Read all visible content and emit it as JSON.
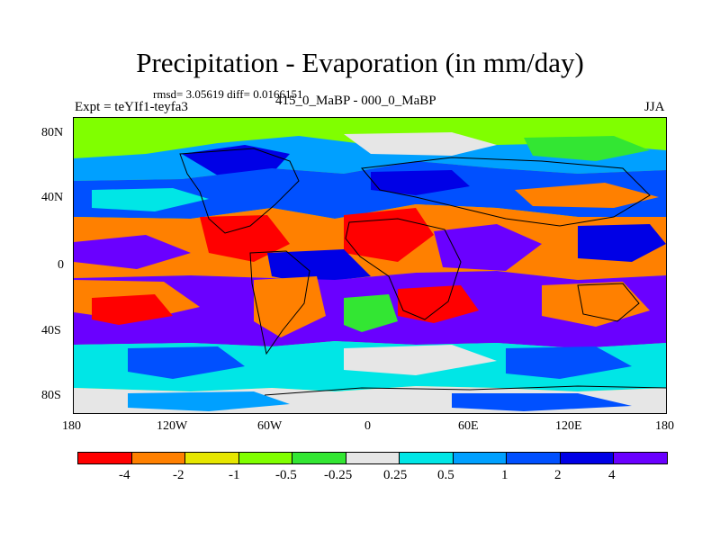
{
  "header": {
    "title": "Precipitation - Evaporation (in mm/day)",
    "subtitle": "rmsd= 3.05619 diff= 0.0166151",
    "left_label": "Expt = teYIf1-teyfa3",
    "center_label": "415_0_MaBP - 000_0_MaBP",
    "right_label": "JJA"
  },
  "axes": {
    "y_ticks": [
      "80N",
      "40N",
      "0",
      "40S",
      "80S"
    ],
    "x_ticks": [
      "180",
      "120W",
      "60W",
      "0",
      "60E",
      "120E",
      "180"
    ]
  },
  "colorbar": {
    "colors": [
      "#ff0000",
      "#ff8000",
      "#e6e600",
      "#80ff00",
      "#33e633",
      "#e6e6e6",
      "#00e6e6",
      "#00a0ff",
      "#0050ff",
      "#0000e6",
      "#6a00ff"
    ],
    "labels": [
      "-4",
      "-2",
      "-1",
      "-0.5",
      "-0.25",
      "0.25",
      "0.5",
      "1",
      "2",
      "4"
    ]
  },
  "map": {
    "background_color": "#80ff00",
    "land_outline_color": "#000000"
  }
}
